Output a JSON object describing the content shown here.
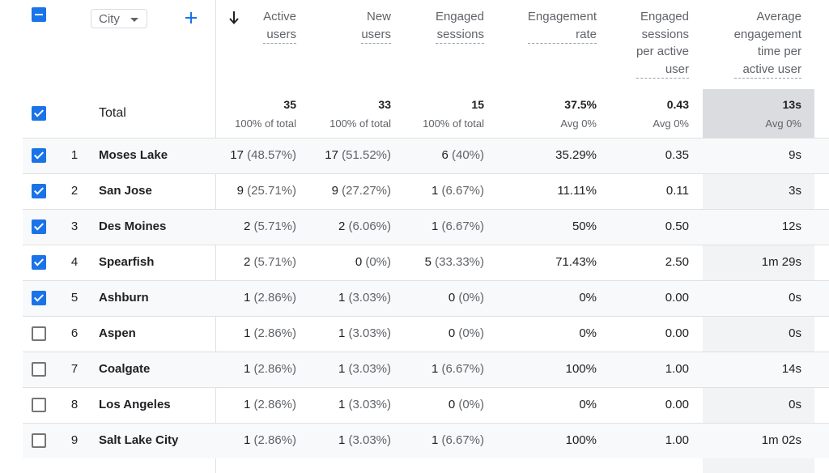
{
  "header": {
    "dimension_label": "City",
    "columns": [
      "Active\nusers",
      "New\nusers",
      "Engaged\nsessions",
      "Engagement\nrate",
      "Engaged\nsessions\nper active\nuser",
      "Average\nengagement\ntime per\nactive user"
    ]
  },
  "totals": {
    "label": "Total",
    "values": [
      "35",
      "33",
      "15",
      "37.5%",
      "0.43",
      "13s"
    ],
    "subs": [
      "100% of total",
      "100% of total",
      "100% of total",
      "Avg 0%",
      "Avg 0%",
      "Avg 0%"
    ]
  },
  "rows": [
    {
      "idx": "1",
      "city": "Moses Lake",
      "checked": true,
      "active": "17",
      "active_pct": "(48.57%)",
      "new": "17",
      "new_pct": "(51.52%)",
      "engaged": "6",
      "engaged_pct": "(40%)",
      "rate": "35.29%",
      "per_user": "0.35",
      "avg_time": "9s"
    },
    {
      "idx": "2",
      "city": "San Jose",
      "checked": true,
      "active": "9",
      "active_pct": "(25.71%)",
      "new": "9",
      "new_pct": "(27.27%)",
      "engaged": "1",
      "engaged_pct": "(6.67%)",
      "rate": "11.11%",
      "per_user": "0.11",
      "avg_time": "3s"
    },
    {
      "idx": "3",
      "city": "Des Moines",
      "checked": true,
      "active": "2",
      "active_pct": "(5.71%)",
      "new": "2",
      "new_pct": "(6.06%)",
      "engaged": "1",
      "engaged_pct": "(6.67%)",
      "rate": "50%",
      "per_user": "0.50",
      "avg_time": "12s"
    },
    {
      "idx": "4",
      "city": "Spearfish",
      "checked": true,
      "active": "2",
      "active_pct": "(5.71%)",
      "new": "0",
      "new_pct": "(0%)",
      "engaged": "5",
      "engaged_pct": "(33.33%)",
      "rate": "71.43%",
      "per_user": "2.50",
      "avg_time": "1m 29s"
    },
    {
      "idx": "5",
      "city": "Ashburn",
      "checked": true,
      "active": "1",
      "active_pct": "(2.86%)",
      "new": "1",
      "new_pct": "(3.03%)",
      "engaged": "0",
      "engaged_pct": "(0%)",
      "rate": "0%",
      "per_user": "0.00",
      "avg_time": "0s"
    },
    {
      "idx": "6",
      "city": "Aspen",
      "checked": false,
      "active": "1",
      "active_pct": "(2.86%)",
      "new": "1",
      "new_pct": "(3.03%)",
      "engaged": "0",
      "engaged_pct": "(0%)",
      "rate": "0%",
      "per_user": "0.00",
      "avg_time": "0s"
    },
    {
      "idx": "7",
      "city": "Coalgate",
      "checked": false,
      "active": "1",
      "active_pct": "(2.86%)",
      "new": "1",
      "new_pct": "(3.03%)",
      "engaged": "1",
      "engaged_pct": "(6.67%)",
      "rate": "100%",
      "per_user": "1.00",
      "avg_time": "14s"
    },
    {
      "idx": "8",
      "city": "Los Angeles",
      "checked": false,
      "active": "1",
      "active_pct": "(2.86%)",
      "new": "1",
      "new_pct": "(3.03%)",
      "engaged": "0",
      "engaged_pct": "(0%)",
      "rate": "0%",
      "per_user": "0.00",
      "avg_time": "0s"
    },
    {
      "idx": "9",
      "city": "Salt Lake City",
      "checked": false,
      "active": "1",
      "active_pct": "(2.86%)",
      "new": "1",
      "new_pct": "(3.03%)",
      "engaged": "1",
      "engaged_pct": "(6.67%)",
      "rate": "100%",
      "per_user": "1.00",
      "avg_time": "1m 02s"
    }
  ],
  "colors": {
    "accent": "#1a73e8",
    "sorted_header_bg": "#dadce0",
    "sorted_column_bg": "#f1f3f4"
  },
  "icons": [
    "minus-checkbox-icon",
    "caret-down-icon",
    "plus-icon",
    "sort-descending-arrow-icon",
    "checkbox-icon"
  ]
}
